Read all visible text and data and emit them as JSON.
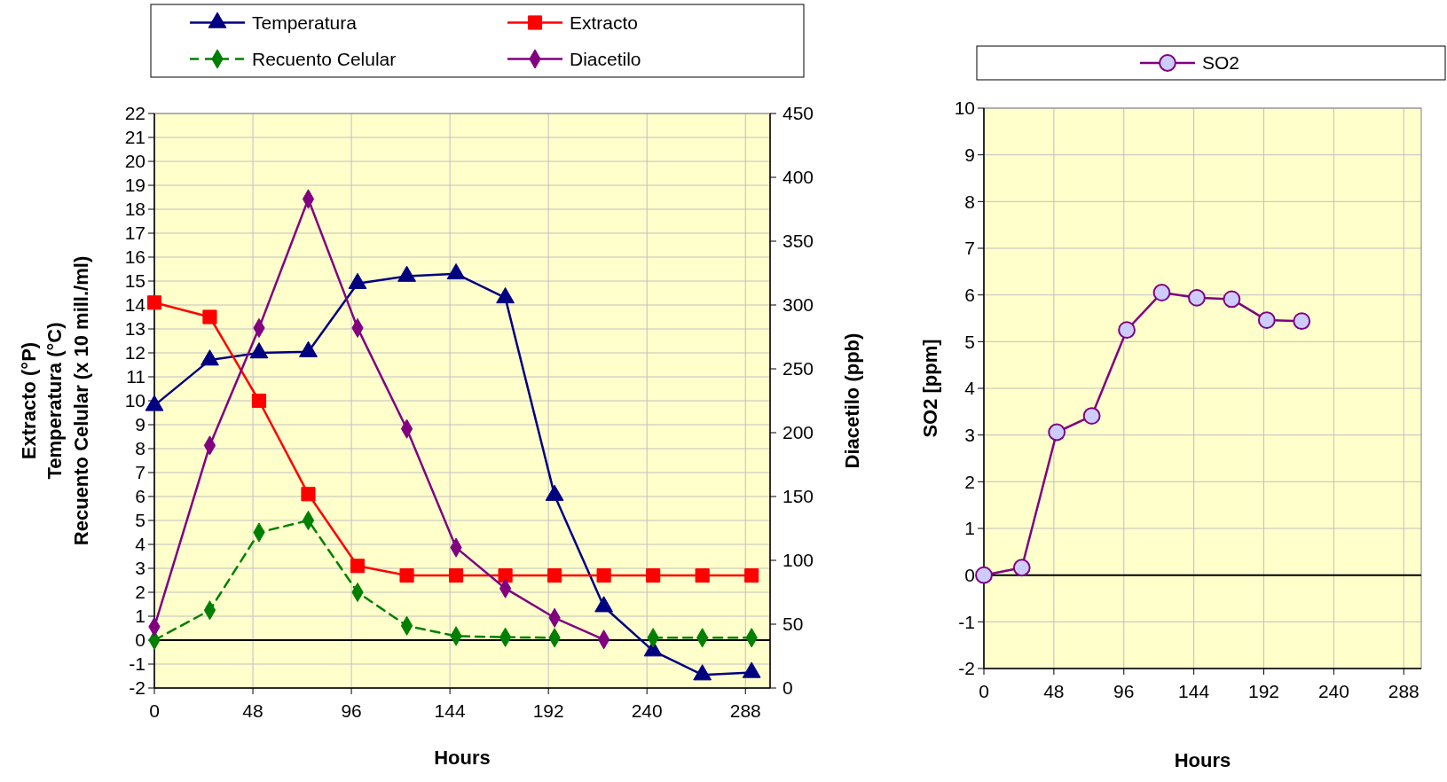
{
  "chart_data": [
    {
      "type": "line",
      "xlabel": "Hours",
      "ylabel": "Extracto (°P)\nTemperatura (°C)\nRecuento Celular  (x 10 mill./ml)",
      "y2label": "Diacetilo (ppb)",
      "x": [
        0,
        27,
        51,
        75,
        99,
        123,
        147,
        171,
        195,
        219,
        243,
        267,
        291
      ],
      "series": [
        {
          "name": "Temperatura",
          "color": "#000080",
          "marker": "triangle",
          "values": [
            9.8,
            11.7,
            12.0,
            12.05,
            14.9,
            15.2,
            15.3,
            14.3,
            6.05,
            1.4,
            -0.45,
            -1.45,
            -1.35
          ]
        },
        {
          "name": "Extracto",
          "color": "#ff0000",
          "marker": "square",
          "values": [
            14.1,
            13.5,
            10.0,
            6.1,
            3.1,
            2.7,
            2.7,
            2.7,
            2.7,
            2.7,
            2.7,
            2.7,
            2.7
          ]
        },
        {
          "name": "Recuento Celular",
          "color": "#008000",
          "marker": "diamond",
          "line_style": "dashed",
          "values": [
            0,
            1.25,
            4.5,
            5.0,
            2.0,
            0.6,
            0.17,
            0.12,
            0.1,
            null,
            0.1,
            0.1,
            0.1
          ]
        },
        {
          "name": "Diacetilo",
          "color": "#800080",
          "marker": "diamond",
          "axis": "y2",
          "values": [
            48,
            190,
            282,
            383,
            282,
            203,
            110,
            78,
            55,
            38,
            null,
            null,
            null
          ]
        }
      ],
      "xlim": [
        0,
        300
      ],
      "xticks": [
        0,
        48,
        96,
        144,
        192,
        240,
        288
      ],
      "ylim": [
        -2,
        22
      ],
      "yticks": [
        -2,
        -1,
        0,
        1,
        2,
        3,
        4,
        5,
        6,
        7,
        8,
        9,
        10,
        11,
        12,
        13,
        14,
        15,
        16,
        17,
        18,
        19,
        20,
        21,
        22
      ],
      "y2lim": [
        0,
        450
      ],
      "y2ticks": [
        0,
        50,
        100,
        150,
        200,
        250,
        300,
        350,
        400,
        450
      ],
      "ref_lines": [
        {
          "axis": "y",
          "value": 0,
          "color": "#000000"
        }
      ],
      "grid": true,
      "legend": "top"
    },
    {
      "type": "line",
      "xlabel": "Hours",
      "ylabel": "SO2 [ppm]",
      "x": [
        0,
        26,
        50,
        74,
        98,
        122,
        146,
        170,
        194,
        218
      ],
      "series": [
        {
          "name": "SO2",
          "color": "#800080",
          "marker": "circle",
          "values": [
            0,
            0.16,
            3.06,
            3.41,
            5.25,
            6.05,
            5.94,
            5.91,
            5.46,
            5.44
          ]
        }
      ],
      "xlim": [
        0,
        300
      ],
      "xticks": [
        0,
        48,
        96,
        144,
        192,
        240,
        288
      ],
      "ylim": [
        -2,
        10
      ],
      "yticks": [
        -2,
        -1,
        0,
        1,
        2,
        3,
        4,
        5,
        6,
        7,
        8,
        9,
        10
      ],
      "ref_lines": [
        {
          "axis": "y",
          "value": 0,
          "color": "#000000"
        }
      ],
      "grid": true,
      "legend": "top"
    }
  ]
}
